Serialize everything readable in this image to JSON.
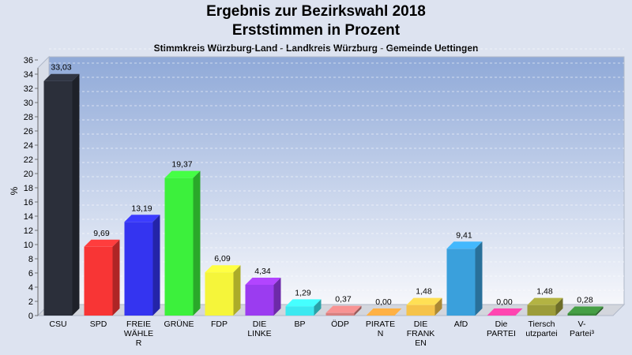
{
  "chart_data": {
    "type": "bar",
    "title": "Ergebnis zur Bezirkswahl 2018",
    "title_line2": "Erststimmen in Prozent",
    "subtitle": "Stimmkreis Würzburg-Land - Landkreis Würzburg - Gemeinde Uettingen",
    "ylabel": "%",
    "ylim": [
      0,
      36
    ],
    "yticks": [
      0,
      2,
      4,
      6,
      8,
      10,
      12,
      14,
      16,
      18,
      20,
      22,
      24,
      26,
      28,
      30,
      32,
      34,
      36
    ],
    "grid": true,
    "categories": [
      [
        "CSU"
      ],
      [
        "SPD"
      ],
      [
        "FREIE",
        "WÄHLE",
        "R"
      ],
      [
        "GRÜNE"
      ],
      [
        "FDP"
      ],
      [
        "DIE",
        "LINKE"
      ],
      [
        "BP"
      ],
      [
        "ÖDP"
      ],
      [
        "PIRATE",
        "N"
      ],
      [
        "DIE",
        "FRANK",
        "EN"
      ],
      [
        "AfD"
      ],
      [
        "Die",
        "PARTEI"
      ],
      [
        "Tiersch",
        "utzpartei"
      ],
      [
        "V-",
        "Partei³"
      ]
    ],
    "values": [
      33.03,
      9.69,
      13.19,
      19.37,
      6.09,
      4.34,
      1.29,
      0.37,
      0.0,
      1.48,
      9.41,
      0.0,
      1.48,
      0.28
    ],
    "value_labels": [
      "33,03",
      "9,69",
      "13,19",
      "19,37",
      "6,09",
      "4,34",
      "1,29",
      "0,37",
      "0,00",
      "1,48",
      "9,41",
      "0,00",
      "1,48",
      "0,28"
    ],
    "colors": [
      "#2b2f3a",
      "#f83535",
      "#3434f0",
      "#3cf03c",
      "#f5f53a",
      "#9b3cf0",
      "#3ce8f0",
      "#d88080",
      "#f59a3c",
      "#f5c34a",
      "#3aa0dc",
      "#f03c9a",
      "#9c9c3a",
      "#3c8a3c"
    ]
  }
}
